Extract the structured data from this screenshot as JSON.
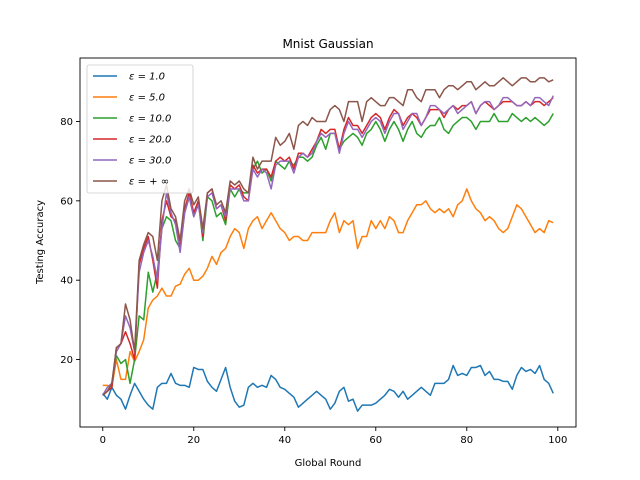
{
  "chart_data": {
    "type": "line",
    "title": "Mnist Gaussian",
    "xlabel": "Global Round",
    "ylabel": "Testing Accuracy",
    "xlim": [
      -5,
      104
    ],
    "ylim": [
      3,
      96
    ],
    "xticks": [
      0,
      20,
      40,
      60,
      80,
      100
    ],
    "yticks": [
      20,
      40,
      60,
      80
    ],
    "grid": false,
    "legend_position": "top-left",
    "series": [
      {
        "name": "ε = 1.0",
        "color": "#1f77b4",
        "values": [
          11.5,
          10,
          13,
          11,
          10,
          7.5,
          11,
          14,
          12,
          10,
          8.5,
          7.5,
          13,
          14,
          14,
          16.5,
          14,
          13.5,
          13.5,
          13,
          18,
          17.5,
          17.5,
          14.5,
          13,
          12,
          15,
          18,
          13,
          9.5,
          8,
          8.5,
          13,
          14,
          13,
          13.5,
          13,
          16,
          15,
          13,
          12.5,
          11.5,
          10.5,
          8,
          9,
          10,
          11,
          12,
          11,
          10,
          7.5,
          9,
          12,
          13,
          9.5,
          10,
          7,
          8.5,
          8.5,
          8.5,
          9,
          10,
          11,
          12.5,
          12,
          10.5,
          12,
          10,
          11,
          12,
          13,
          12,
          11,
          14,
          14,
          14,
          15,
          18.5,
          16,
          16.5,
          16,
          18,
          18,
          18.5,
          16,
          17,
          15,
          15,
          14.5,
          14.5,
          12.5,
          16,
          18,
          17,
          17.5,
          16.5,
          18.5,
          15,
          14,
          11.5
        ]
      },
      {
        "name": "ε = 5.0",
        "color": "#ff7f0e",
        "values": [
          13.5,
          13.5,
          13,
          20,
          15,
          15,
          22,
          19.5,
          22,
          25,
          33,
          35,
          36,
          38,
          36,
          36,
          38.5,
          39,
          41.5,
          43,
          40,
          40,
          41,
          43,
          46,
          44,
          47,
          48,
          51,
          53,
          52,
          48,
          53,
          55,
          56,
          53,
          55,
          57,
          55,
          53,
          52,
          50,
          51,
          51,
          50,
          50,
          52,
          52,
          52,
          52,
          55,
          57,
          52,
          55,
          54,
          55,
          48,
          51,
          51,
          55,
          53,
          55,
          53,
          56,
          55,
          52,
          52,
          55,
          57,
          59,
          59,
          60,
          58,
          57,
          58,
          57,
          58,
          56,
          59,
          60,
          63,
          60,
          58,
          57,
          55,
          56,
          55,
          53,
          52,
          53,
          56,
          59,
          58,
          56,
          54,
          52,
          53,
          52,
          55,
          54.5
        ]
      },
      {
        "name": "ε = 10.0",
        "color": "#2ca02c",
        "values": [
          11,
          12,
          14,
          21,
          19,
          20,
          14,
          20,
          31,
          30,
          42,
          37,
          42,
          53,
          56,
          55,
          50,
          48,
          57,
          61,
          56,
          60,
          50,
          61,
          60,
          56,
          57,
          54,
          63,
          61,
          63,
          62,
          62,
          68,
          70,
          67,
          68,
          65,
          70,
          69,
          68,
          70,
          69,
          71,
          71,
          70,
          71,
          74,
          76,
          73,
          77,
          77,
          73,
          75,
          76,
          77,
          76,
          74,
          77,
          78,
          80,
          78,
          75,
          78,
          80,
          78,
          75,
          78,
          80,
          77,
          76,
          78,
          79,
          79,
          81,
          78,
          77,
          79,
          80,
          81,
          81,
          80,
          78,
          80,
          80,
          80,
          82,
          80,
          80,
          80,
          82,
          81,
          80,
          81,
          80,
          81,
          80,
          79,
          80,
          82
        ]
      },
      {
        "name": "ε = 20.0",
        "color": "#d62728",
        "values": [
          11,
          12,
          13,
          23,
          24,
          27,
          24,
          20,
          44,
          48,
          51,
          45,
          38,
          55,
          60,
          56,
          55,
          48,
          58,
          62,
          57,
          60,
          51,
          62,
          63,
          58,
          59,
          55,
          64,
          63,
          64,
          61,
          60,
          69,
          67,
          68,
          68,
          66,
          70,
          71,
          70,
          71,
          68,
          72,
          72,
          71,
          73,
          75,
          78,
          77,
          78,
          78,
          73,
          78,
          81,
          79,
          79,
          77,
          79,
          81,
          82,
          81,
          78,
          81,
          83,
          82,
          79,
          81,
          82,
          81,
          79,
          81,
          83,
          83,
          83,
          81,
          83,
          84,
          83,
          84,
          84,
          85,
          82,
          84,
          85,
          84,
          83,
          84,
          85,
          85,
          85,
          84,
          84,
          85,
          84,
          85,
          85,
          84,
          85,
          86
        ]
      },
      {
        "name": "ε = 30.0",
        "color": "#9467bd",
        "values": [
          11,
          13,
          14,
          22,
          24,
          31,
          28,
          22,
          42,
          47,
          50,
          46,
          40,
          53,
          62,
          57,
          54,
          47,
          57,
          61,
          56,
          59,
          52,
          61,
          62,
          58,
          59,
          56,
          63,
          63,
          63,
          60,
          60,
          68,
          66,
          68,
          67,
          63,
          69,
          70,
          70,
          70,
          67,
          71,
          72,
          71,
          72,
          75,
          77,
          76,
          77,
          77,
          72,
          77,
          80,
          78,
          78,
          76,
          78,
          80,
          81,
          80,
          77,
          80,
          82,
          82,
          78,
          80,
          82,
          82,
          79,
          81,
          84,
          84,
          83,
          82,
          83,
          84,
          82,
          83,
          84,
          85,
          82,
          84,
          85,
          85,
          83,
          84,
          86,
          86,
          85,
          84,
          84,
          85,
          84,
          86,
          86,
          85,
          84,
          86.5
        ]
      },
      {
        "name": "ε = + ∞",
        "color": "#8c564b",
        "values": [
          11,
          12,
          14,
          23,
          24,
          34,
          30,
          22,
          45,
          49,
          52,
          51,
          45,
          60,
          64,
          58,
          56,
          50,
          60,
          63,
          59,
          61,
          53,
          62,
          63,
          59,
          60,
          57,
          65,
          64,
          65,
          63,
          62,
          71,
          68,
          70,
          70,
          70,
          76,
          74,
          75,
          77,
          73,
          79,
          80,
          79,
          81,
          80,
          80,
          80,
          83,
          84,
          83,
          80,
          85,
          85,
          85,
          80,
          85,
          86,
          85,
          84,
          84,
          86,
          86,
          85,
          84,
          88,
          88,
          86,
          85,
          88,
          88,
          88,
          86,
          88,
          89,
          89,
          88,
          89,
          90,
          90,
          88,
          89,
          90,
          89,
          89,
          90,
          91,
          90,
          89,
          90,
          91,
          91,
          90,
          90,
          91,
          91,
          90,
          90.5
        ]
      }
    ]
  }
}
